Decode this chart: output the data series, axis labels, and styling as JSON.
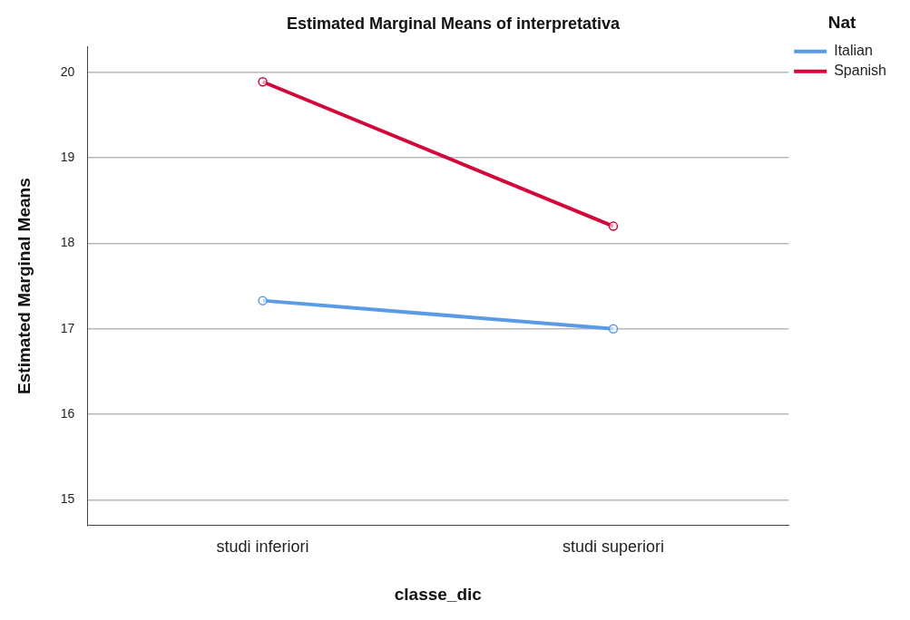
{
  "chart_data": {
    "type": "line",
    "title": "Estimated Marginal Means of interpretativa",
    "xlabel": "classe_dic",
    "ylabel": "Estimated Marginal Means",
    "legend_title": "Nat",
    "categories": [
      "studi inferiori",
      "studi superiori"
    ],
    "series": [
      {
        "name": "Italian",
        "color": "#5b9be6",
        "values": [
          17.33,
          17.0
        ]
      },
      {
        "name": "Spanish",
        "color": "#d3083a",
        "values": [
          19.89,
          18.2
        ]
      }
    ],
    "ylim": [
      14.7,
      20.3
    ],
    "yticks": [
      15,
      16,
      17,
      18,
      19,
      20
    ],
    "grid": "y",
    "legend": "top right",
    "marker": "circle",
    "line_style": "solid"
  }
}
